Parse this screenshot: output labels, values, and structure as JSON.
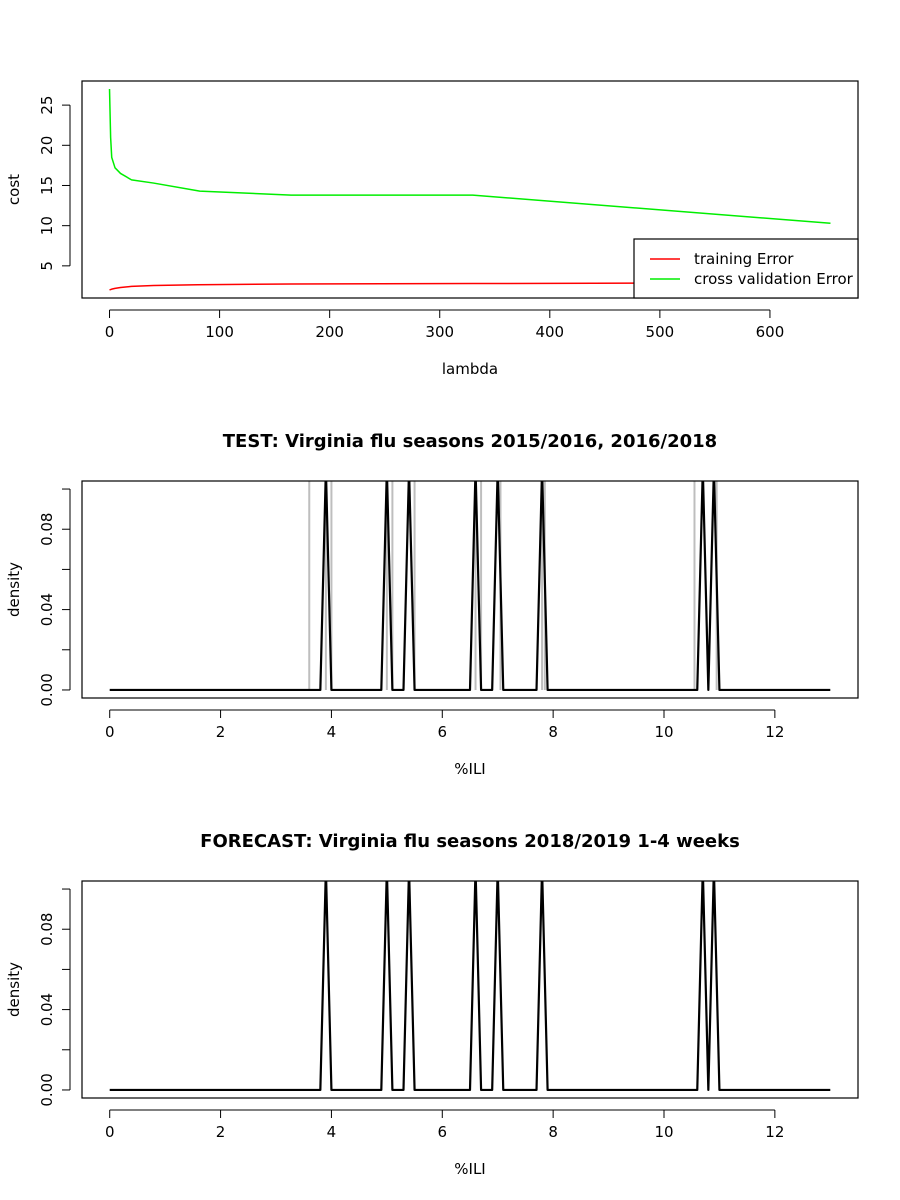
{
  "chart_data": [
    {
      "type": "line",
      "title": "",
      "xlabel": "lambda",
      "ylabel": "cost",
      "xlim": [
        -25,
        680
      ],
      "ylim": [
        1,
        28
      ],
      "xticks": [
        0,
        100,
        200,
        300,
        400,
        500,
        600
      ],
      "yticks": [
        5,
        10,
        15,
        20,
        25
      ],
      "legend": {
        "position": "bottom-right",
        "entries": [
          {
            "label": "training Error",
            "color": "#ff0000"
          },
          {
            "label": "cross validation Error",
            "color": "#00ee00"
          }
        ]
      },
      "series": [
        {
          "name": "training Error",
          "color": "#ff0000",
          "x": [
            0,
            2,
            5,
            10,
            20,
            40,
            80,
            165,
            330,
            500,
            655
          ],
          "y": [
            2.0,
            2.1,
            2.2,
            2.3,
            2.45,
            2.55,
            2.65,
            2.75,
            2.8,
            2.85,
            2.9
          ]
        },
        {
          "name": "cross validation Error",
          "color": "#00ee00",
          "x": [
            0,
            1,
            2,
            5,
            10,
            20,
            40,
            82,
            165,
            330,
            655
          ],
          "y": [
            27,
            21,
            18.5,
            17.2,
            16.5,
            15.7,
            15.3,
            14.3,
            13.8,
            13.8,
            10.3
          ]
        }
      ]
    },
    {
      "type": "line",
      "title": "TEST: Virginia  flu seasons 2015/2016, 2016/2018",
      "xlabel": "%ILI",
      "ylabel": "density",
      "xlim": [
        -0.5,
        13.5
      ],
      "ylim": [
        -0.004,
        0.104
      ],
      "xticks": [
        0,
        2,
        4,
        6,
        8,
        10,
        12
      ],
      "yticks": [
        0.0,
        0.02,
        0.04,
        0.06,
        0.08,
        0.1
      ],
      "ytick_labels": [
        "0.00",
        "",
        "0.04",
        "",
        "0.08",
        ""
      ],
      "reference_lines_x": [
        3.6,
        3.9,
        4.0,
        5.0,
        5.1,
        5.5,
        6.6,
        6.7,
        7.05,
        7.8,
        7.85,
        10.55,
        10.95
      ],
      "series": [
        {
          "name": "density",
          "color": "#000000",
          "peaks": [
            3.9,
            5.0,
            5.4,
            6.6,
            7.0,
            7.8,
            10.7,
            10.9
          ],
          "peak_halfwidth": 0.1,
          "peak_value": 0.11,
          "x_range": [
            0,
            13
          ]
        }
      ]
    },
    {
      "type": "line",
      "title": "FORECAST: Virginia flu seasons 2018/2019 1-4 weeks",
      "xlabel": "%ILI",
      "ylabel": "density",
      "xlim": [
        -0.5,
        13.5
      ],
      "ylim": [
        -0.004,
        0.104
      ],
      "xticks": [
        0,
        2,
        4,
        6,
        8,
        10,
        12
      ],
      "yticks": [
        0.0,
        0.02,
        0.04,
        0.06,
        0.08,
        0.1
      ],
      "ytick_labels": [
        "0.00",
        "",
        "0.04",
        "",
        "0.08",
        ""
      ],
      "series": [
        {
          "name": "density",
          "color": "#000000",
          "peaks": [
            3.9,
            5.0,
            5.4,
            6.6,
            7.0,
            7.8,
            10.7,
            10.9
          ],
          "peak_halfwidth": 0.1,
          "peak_value": 0.11,
          "x_range": [
            0,
            13
          ]
        }
      ]
    }
  ]
}
